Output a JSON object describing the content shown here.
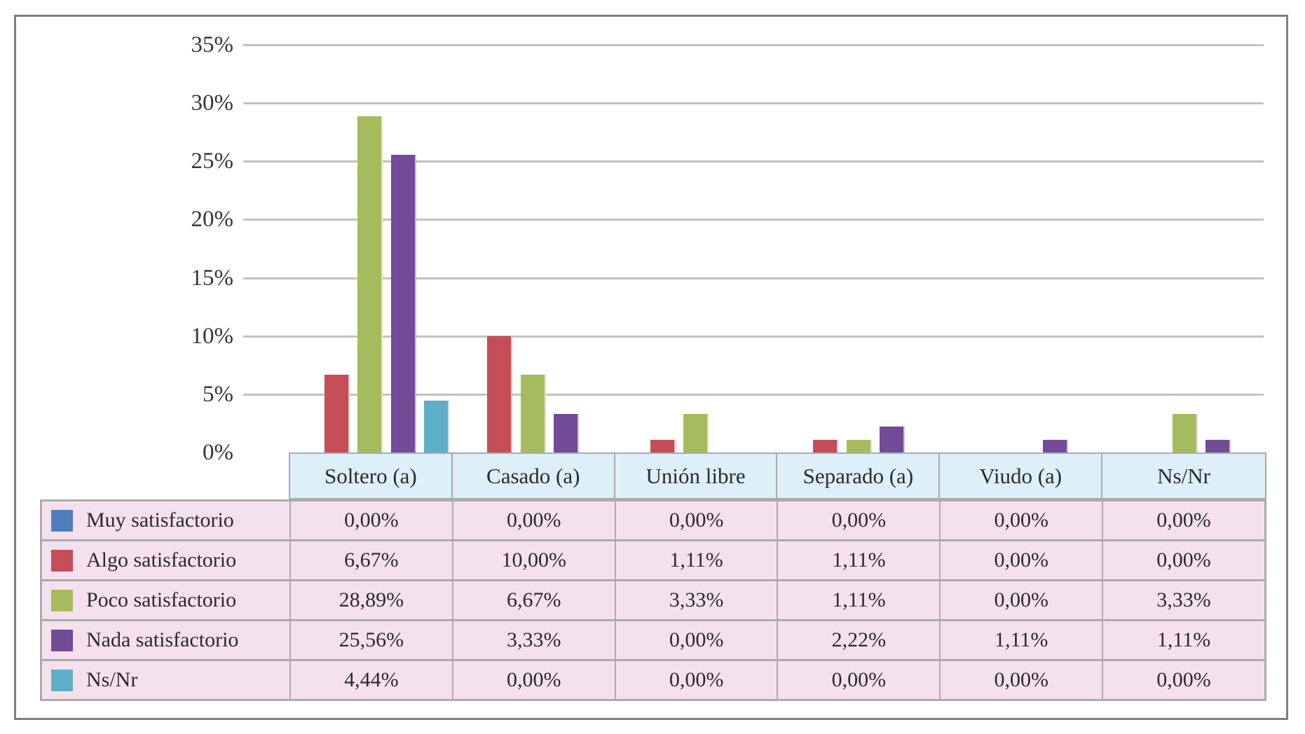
{
  "chart_data": {
    "type": "bar",
    "title": "",
    "categories": [
      "Soltero (a)",
      "Casado (a)",
      "Unión libre",
      "Separado (a)",
      "Viudo (a)",
      "Ns/Nr"
    ],
    "series": [
      {
        "name": "Muy satisfactorio",
        "color": "#4f7dbb",
        "values": [
          0,
          0,
          0,
          0,
          0,
          0
        ],
        "labels": [
          "0,00%",
          "0,00%",
          "0,00%",
          "0,00%",
          "0,00%",
          "0,00%"
        ]
      },
      {
        "name": "Algo satisfactorio",
        "color": "#c44d58",
        "values": [
          6.67,
          10.0,
          1.11,
          1.11,
          0,
          0
        ],
        "labels": [
          "6,67%",
          "10,00%",
          "1,11%",
          "1,11%",
          "0,00%",
          "0,00%"
        ]
      },
      {
        "name": "Poco satisfactorio",
        "color": "#a6bb5d",
        "values": [
          28.89,
          6.67,
          3.33,
          1.11,
          0,
          3.33
        ],
        "labels": [
          "28,89%",
          "6,67%",
          "3,33%",
          "1,11%",
          "0,00%",
          "3,33%"
        ]
      },
      {
        "name": "Nada satisfactorio",
        "color": "#724b97",
        "values": [
          25.56,
          3.33,
          0,
          2.22,
          1.11,
          1.11
        ],
        "labels": [
          "25,56%",
          "3,33%",
          "0,00%",
          "2,22%",
          "1,11%",
          "1,11%"
        ]
      },
      {
        "name": "Ns/Nr",
        "color": "#5faec8",
        "values": [
          4.44,
          0,
          0,
          0,
          0,
          0
        ],
        "labels": [
          "4,44%",
          "0,00%",
          "0,00%",
          "0,00%",
          "0,00%",
          "0,00%"
        ]
      }
    ],
    "y_axis": {
      "unit": "%",
      "min": 0,
      "max": 35,
      "step": 5,
      "tick_labels": [
        "0%",
        "5%",
        "10%",
        "15%",
        "20%",
        "25%",
        "30%",
        "35%"
      ]
    },
    "grid": true,
    "legend_position": "table-rows-left",
    "colors": {
      "grid_line": "#c2c2c2",
      "frame_border": "#7f7f7f",
      "table_border": "#ababab",
      "category_header_bg": "#ddeff8",
      "table_row_bg": "#f5e1ed",
      "text": "#2b2b2b"
    }
  }
}
